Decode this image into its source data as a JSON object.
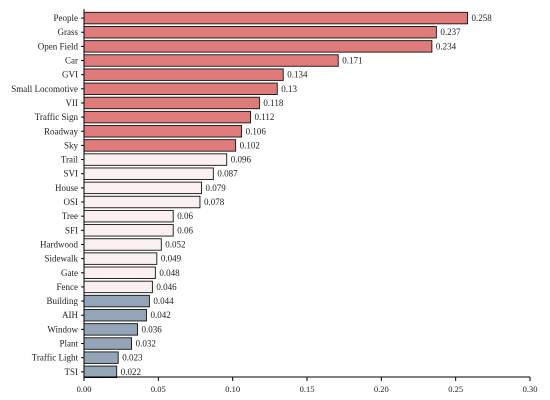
{
  "chart_data": {
    "type": "bar",
    "orientation": "horizontal",
    "title": "",
    "xlabel": "",
    "ylabel": "",
    "xlim": [
      0,
      0.3
    ],
    "x_ticks": [
      0.0,
      0.05,
      0.1,
      0.15,
      0.2,
      0.25,
      0.3
    ],
    "x_tick_labels": [
      "0.00",
      "0.05",
      "0.10",
      "0.15",
      "0.20",
      "0.25",
      "0.30"
    ],
    "grid": false,
    "categories": [
      "People",
      "Grass",
      "Open Field",
      "Car",
      "GVI",
      "Small Locomotive",
      "VII",
      "Traffic Sign",
      "Roadway",
      "Sky",
      "Trail",
      "SVI",
      "House",
      "OSI",
      "Tree",
      "SFI",
      "Hardwood",
      "Sidewalk",
      "Gate",
      "Fence",
      "Building",
      "AIH",
      "Window",
      "Plant",
      "Traffic Light",
      "TSI"
    ],
    "values": [
      0.258,
      0.237,
      0.234,
      0.171,
      0.134,
      0.13,
      0.118,
      0.112,
      0.106,
      0.102,
      0.096,
      0.087,
      0.079,
      0.078,
      0.06,
      0.06,
      0.052,
      0.049,
      0.048,
      0.046,
      0.044,
      0.042,
      0.036,
      0.032,
      0.023,
      0.022
    ],
    "value_labels": [
      "0.258",
      "0.237",
      "0.234",
      "0.171",
      "0.134",
      "0.13",
      "0.118",
      "0.112",
      "0.106",
      "0.102",
      "0.096",
      "0.087",
      "0.079",
      "0.078",
      "0.06",
      "0.06",
      "0.052",
      "0.049",
      "0.048",
      "0.046",
      "0.044",
      "0.042",
      "0.036",
      "0.032",
      "0.023",
      "0.022"
    ],
    "bar_colors": [
      "#e07b7b",
      "#e07b7b",
      "#e07b7b",
      "#e07b7b",
      "#e07b7b",
      "#e07b7b",
      "#e07b7b",
      "#e07b7b",
      "#e07b7b",
      "#e07b7b",
      "#fbf0f0",
      "#fbf0f0",
      "#fbf0f0",
      "#fbf0f0",
      "#fbf0f0",
      "#fbf0f0",
      "#fbf0f0",
      "#fbf0f0",
      "#fbf0f0",
      "#fbf0f0",
      "#94a5b8",
      "#94a5b8",
      "#94a5b8",
      "#94a5b8",
      "#94a5b8",
      "#94a5b8"
    ]
  }
}
